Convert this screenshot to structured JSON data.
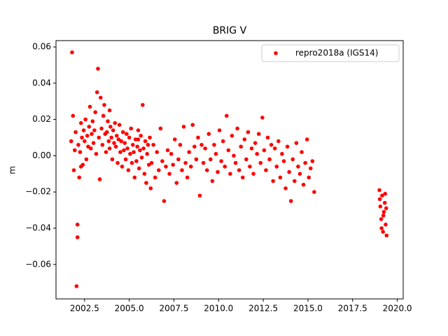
{
  "chart_data": {
    "type": "scatter",
    "title": "BRIG V",
    "y_label": "m",
    "xlim": [
      2000.9,
      2020.33
    ],
    "ylim": [
      -0.079,
      0.0635
    ],
    "xticks": [
      2002.5,
      {
        "value": 2005.0,
        "label": "2005.0"
      },
      2007.5,
      {
        "value": 2010.0,
        "label": "2010.0"
      },
      2012.5,
      {
        "value": 2015.0,
        "label": "2015.0"
      },
      2017.5,
      {
        "value": 2020.0,
        "label": "2020.0"
      }
    ],
    "yticks": [
      {
        "value": -0.06,
        "label": "−0.06"
      },
      {
        "value": -0.04,
        "label": "−0.04"
      },
      {
        "value": -0.02,
        "label": "−0.02"
      },
      {
        "value": 0,
        "label": "0.00"
      },
      0.02,
      0.04,
      0.06
    ],
    "legend": "upper right",
    "series": [
      {
        "name": "repro2018a (IGS14)",
        "color": "#ff0000",
        "x": [
          2001.75,
          2001.8,
          2001.85,
          2001.9,
          2001.95,
          2002.0,
          2002.05,
          2002.1,
          2002.15,
          2002.2,
          2002.25,
          2002.3,
          2002.35,
          2002.4,
          2002.45,
          2002.5,
          2002.55,
          2002.6,
          2002.65,
          2002.7,
          2002.75,
          2002.8,
          2002.85,
          2002.9,
          2002.95,
          2003.0,
          2003.05,
          2003.1,
          2003.15,
          2003.2,
          2003.25,
          2003.3,
          2003.35,
          2003.4,
          2003.45,
          2003.5,
          2003.55,
          2003.6,
          2003.65,
          2003.7,
          2003.75,
          2003.8,
          2003.85,
          2003.9,
          2003.95,
          2004.0,
          2004.05,
          2004.1,
          2004.15,
          2004.2,
          2004.25,
          2004.3,
          2004.35,
          2004.4,
          2004.45,
          2004.5,
          2004.55,
          2004.6,
          2004.65,
          2004.7,
          2004.75,
          2004.8,
          2004.85,
          2004.9,
          2004.95,
          2005.0,
          2005.05,
          2005.1,
          2005.15,
          2005.2,
          2005.25,
          2005.3,
          2005.35,
          2005.4,
          2005.45,
          2005.5,
          2005.55,
          2005.6,
          2005.65,
          2005.7,
          2005.75,
          2005.8,
          2005.85,
          2005.9,
          2005.95,
          2006.0,
          2006.05,
          2006.1,
          2006.15,
          2006.2,
          2006.25,
          2006.35,
          2006.45,
          2006.55,
          2006.65,
          2006.75,
          2006.85,
          2006.95,
          2007.05,
          2007.15,
          2007.25,
          2007.35,
          2007.45,
          2007.55,
          2007.65,
          2007.75,
          2007.85,
          2007.95,
          2008.05,
          2008.15,
          2008.25,
          2008.35,
          2008.45,
          2008.55,
          2008.65,
          2008.75,
          2008.85,
          2008.95,
          2009.05,
          2009.15,
          2009.25,
          2009.35,
          2009.45,
          2009.55,
          2009.65,
          2009.75,
          2009.85,
          2009.95,
          2010.05,
          2010.15,
          2010.25,
          2010.35,
          2010.45,
          2010.55,
          2010.65,
          2010.75,
          2010.85,
          2010.95,
          2011.05,
          2011.15,
          2011.25,
          2011.35,
          2011.45,
          2011.55,
          2011.65,
          2011.75,
          2011.85,
          2011.95,
          2012.05,
          2012.15,
          2012.25,
          2012.35,
          2012.45,
          2012.55,
          2012.65,
          2012.75,
          2012.85,
          2012.95,
          2013.05,
          2013.15,
          2013.25,
          2013.35,
          2013.45,
          2013.55,
          2013.65,
          2013.75,
          2013.85,
          2013.95,
          2014.05,
          2014.15,
          2014.25,
          2014.35,
          2014.45,
          2014.55,
          2014.65,
          2014.75,
          2014.85,
          2014.95,
          2015.05,
          2015.15,
          2015.25,
          2015.35,
          2019.0,
          2019.05,
          2019.1,
          2019.15,
          2019.2,
          2019.25,
          2019.3,
          2019.35,
          2019.4,
          2019.02,
          2019.12,
          2019.22,
          2019.32,
          2019.38,
          2002.1,
          2002.3,
          2003.9,
          2005.5
        ],
        "values": [
          0.008,
          0.057,
          0.022,
          -0.008,
          0.003,
          0.013,
          -0.072,
          -0.045,
          0.006,
          -0.012,
          0.002,
          0.018,
          0.01,
          -0.005,
          0.014,
          0.008,
          0.02,
          -0.002,
          0.011,
          0.005,
          0.016,
          0.027,
          0.004,
          0.012,
          0.019,
          0.007,
          0.014,
          0.024,
          0.001,
          0.035,
          0.048,
          0.01,
          -0.013,
          0.032,
          0.015,
          0.006,
          0.022,
          0.028,
          0.012,
          0.002,
          0.013,
          0.019,
          0.008,
          0.004,
          0.016,
          0.01,
          -0.002,
          0.014,
          0.007,
          0.018,
          0.005,
          0.011,
          -0.004,
          0.009,
          0.017,
          0.002,
          0.008,
          -0.006,
          0.013,
          0.003,
          0.007,
          -0.002,
          0.012,
          0.004,
          -0.008,
          0.01,
          0.001,
          0.015,
          -0.004,
          0.006,
          0.002,
          -0.012,
          0.009,
          -0.003,
          0.005,
          0.014,
          -0.007,
          0.003,
          0.011,
          -0.001,
          0.028,
          0.004,
          -0.01,
          0.008,
          -0.015,
          0.001,
          0.006,
          -0.005,
          0.01,
          -0.018,
          -0.004,
          0.006,
          -0.012,
          0.002,
          -0.008,
          0.015,
          -0.003,
          -0.025,
          -0.006,
          0.003,
          -0.01,
          0.001,
          -0.005,
          0.009,
          -0.015,
          -0.002,
          0.006,
          -0.008,
          0.016,
          -0.004,
          -0.012,
          0.002,
          -0.006,
          0.017,
          0.005,
          -0.002,
          0.01,
          -0.022,
          0.006,
          -0.004,
          0.004,
          -0.008,
          0.012,
          -0.002,
          -0.014,
          0.006,
          0.001,
          -0.009,
          0.014,
          -0.003,
          0.008,
          -0.006,
          0.022,
          0.003,
          -0.01,
          0.011,
          0.0,
          -0.004,
          0.015,
          -0.008,
          0.005,
          -0.012,
          0.009,
          -0.002,
          0.013,
          -0.006,
          0.004,
          -0.01,
          0.007,
          0.001,
          0.012,
          -0.004,
          0.021,
          0.003,
          -0.008,
          0.01,
          -0.002,
          0.006,
          -0.014,
          0.004,
          -0.006,
          0.008,
          -0.012,
          0.001,
          -0.003,
          -0.018,
          0.005,
          -0.009,
          -0.025,
          -0.002,
          -0.014,
          0.007,
          -0.006,
          -0.01,
          0.002,
          -0.016,
          -0.004,
          0.009,
          -0.012,
          -0.007,
          -0.003,
          -0.02,
          -0.019,
          -0.028,
          -0.035,
          -0.022,
          -0.042,
          -0.031,
          -0.026,
          -0.038,
          -0.044,
          -0.024,
          -0.04,
          -0.033,
          -0.021,
          -0.029,
          -0.038,
          -0.006,
          0.025,
          0.009
        ]
      }
    ]
  }
}
